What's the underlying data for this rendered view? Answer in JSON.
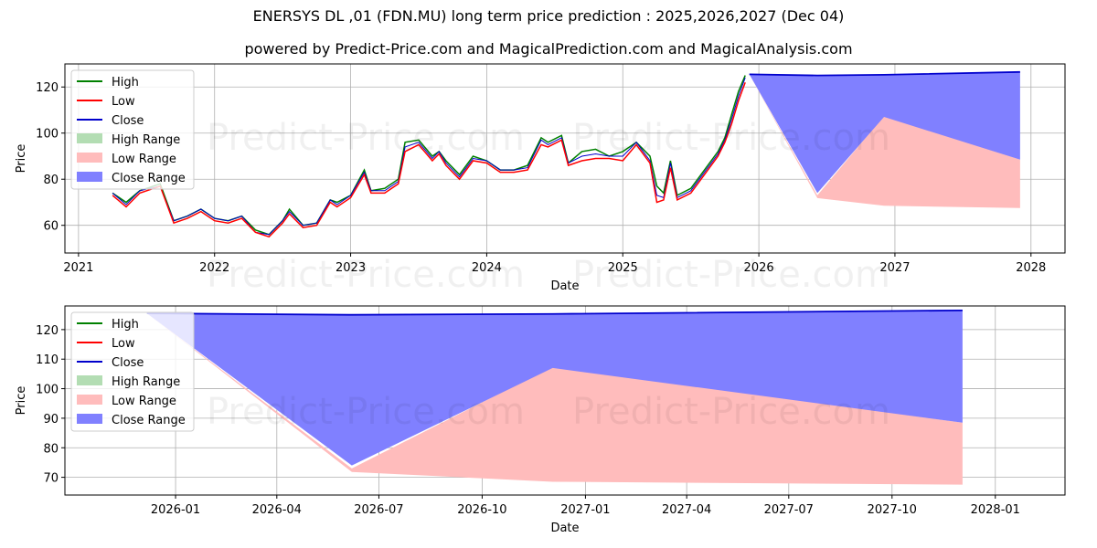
{
  "title": "ENERSYS DL ,01 (FDN.MU) long term price prediction : 2025,2026,2027 (Dec 04)",
  "subtitle": "powered by Predict-Price.com and MagicalPrediction.com and MagicalAnalysis.com",
  "watermark": "Predict-Price.com",
  "colors": {
    "high": "#008000",
    "low": "#ff0000",
    "close": "#0000cc",
    "high_range": "#b3ddb3",
    "low_range": "#ffbcbc",
    "close_range": "#8080ff"
  },
  "chart_data": [
    {
      "type": "line",
      "panel": "top",
      "xlabel": "Date",
      "ylabel": "Price",
      "xlim": [
        2020.9,
        2028.25
      ],
      "ylim": [
        48,
        130
      ],
      "xticks": [
        2021,
        2022,
        2023,
        2024,
        2025,
        2026,
        2027,
        2028
      ],
      "xtick_labels": [
        "2021",
        "2022",
        "2023",
        "2024",
        "2025",
        "2026",
        "2027",
        "2028"
      ],
      "yticks": [
        60,
        80,
        100,
        120
      ],
      "legend": [
        "High",
        "Low",
        "Close",
        "High Range",
        "Low Range",
        "Close Range"
      ],
      "legend_position": "top-left",
      "history": {
        "x": [
          2021.25,
          2021.35,
          2021.45,
          2021.6,
          2021.7,
          2021.8,
          2021.9,
          2022.0,
          2022.1,
          2022.2,
          2022.3,
          2022.4,
          2022.5,
          2022.55,
          2022.65,
          2022.75,
          2022.85,
          2022.9,
          2023.0,
          2023.1,
          2023.15,
          2023.25,
          2023.35,
          2023.4,
          2023.5,
          2023.6,
          2023.65,
          2023.7,
          2023.8,
          2023.9,
          2024.0,
          2024.1,
          2024.2,
          2024.3,
          2024.4,
          2024.45,
          2024.55,
          2024.6,
          2024.7,
          2024.8,
          2024.9,
          2025.0,
          2025.1,
          2025.2,
          2025.25,
          2025.3,
          2025.35,
          2025.4,
          2025.5,
          2025.6,
          2025.7,
          2025.75,
          2025.8,
          2025.85,
          2025.9
        ],
        "high": [
          74,
          70,
          75,
          78,
          62,
          64,
          67,
          63,
          62,
          64,
          58,
          56,
          62,
          67,
          60,
          61,
          71,
          70,
          73,
          84,
          75,
          76,
          80,
          96,
          97,
          90,
          92,
          88,
          82,
          90,
          88,
          84,
          84,
          86,
          98,
          96,
          99,
          87,
          92,
          93,
          90,
          92,
          96,
          90,
          77,
          74,
          88,
          73,
          76,
          84,
          92,
          98,
          108,
          118,
          125
        ],
        "low": [
          73,
          68,
          74,
          77,
          61,
          63,
          66,
          62,
          61,
          63,
          57,
          55,
          61,
          65,
          59,
          60,
          70,
          68,
          72,
          82,
          74,
          74,
          78,
          92,
          95,
          88,
          91,
          86,
          80,
          88,
          87,
          83,
          83,
          84,
          95,
          94,
          97,
          86,
          88,
          89,
          89,
          88,
          95,
          87,
          70,
          71,
          85,
          71,
          74,
          82,
          90,
          96,
          104,
          114,
          122
        ],
        "close": [
          74,
          69,
          75,
          77,
          62,
          64,
          67,
          63,
          62,
          64,
          57,
          56,
          62,
          66,
          60,
          61,
          71,
          69,
          73,
          83,
          75,
          75,
          79,
          94,
          96,
          89,
          92,
          87,
          81,
          89,
          88,
          84,
          84,
          85,
          97,
          95,
          98,
          87,
          90,
          91,
          90,
          90,
          96,
          88,
          73,
          72,
          87,
          72,
          75,
          83,
          91,
          97,
          106,
          116,
          124
        ]
      },
      "forecast": {
        "x": [
          2025.93,
          2026.43,
          2026.92,
          2027.92
        ],
        "close": [
          125.5,
          125,
          125.3,
          126.5
        ],
        "close_range_low": [
          125.5,
          74,
          107,
          88.5
        ],
        "low_range_high": [
          125.5,
          73,
          107.5,
          88.5
        ],
        "low_range_low": [
          125.5,
          71.8,
          68.5,
          67.5
        ]
      }
    },
    {
      "type": "line",
      "panel": "bottom",
      "xlabel": "Date",
      "ylabel": "Price",
      "xlim": [
        2025.73,
        2028.17
      ],
      "ylim": [
        64,
        128
      ],
      "xticks": [
        2026.0,
        2026.247,
        2026.496,
        2026.748,
        2027.0,
        2027.247,
        2027.496,
        2027.748,
        2028.0
      ],
      "xtick_labels": [
        "2026-01",
        "2026-04",
        "2026-07",
        "2026-10",
        "2027-01",
        "2027-04",
        "2027-07",
        "2027-10",
        "2028-01"
      ],
      "yticks": [
        70,
        80,
        90,
        100,
        110,
        120
      ],
      "legend": [
        "High",
        "Low",
        "Close",
        "High Range",
        "Low Range",
        "Close Range"
      ],
      "legend_position": "top-left",
      "forecast": {
        "x": [
          2025.93,
          2026.43,
          2026.92,
          2027.92
        ],
        "close": [
          125.5,
          125,
          125.3,
          126.5
        ],
        "close_range_low": [
          125.5,
          74,
          107,
          88.5
        ],
        "low_range_high": [
          125.5,
          73,
          107.5,
          88.5
        ],
        "low_range_low": [
          125.5,
          71.8,
          68.5,
          67.5
        ]
      }
    }
  ]
}
